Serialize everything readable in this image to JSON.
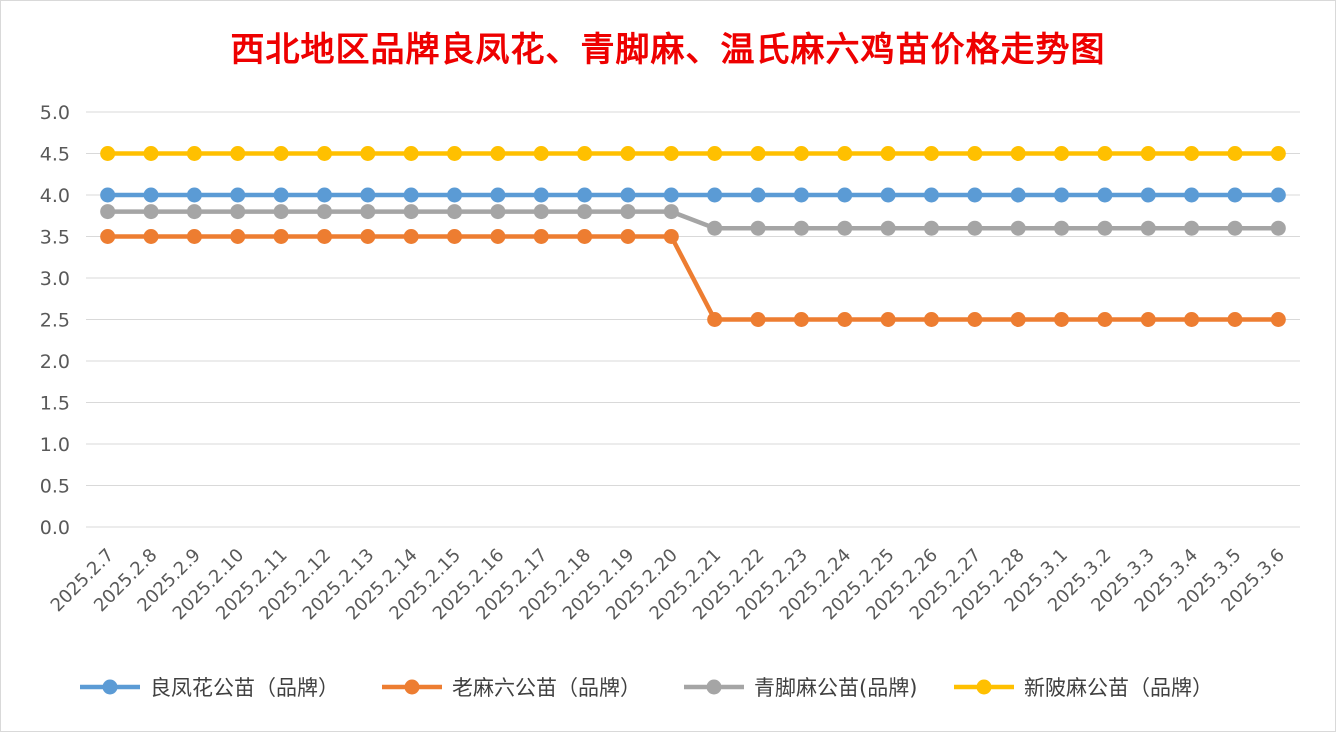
{
  "chart_data": {
    "type": "line",
    "title": "西北地区品牌良凤花、青脚麻、温氏麻六鸡苗价格走势图",
    "xlabel": "",
    "ylabel": "",
    "ylim": [
      0,
      5
    ],
    "yticks": [
      "0.0",
      "0.5",
      "1.0",
      "1.5",
      "2.0",
      "2.5",
      "3.0",
      "3.5",
      "4.0",
      "4.5",
      "5.0"
    ],
    "grid": true,
    "legend_position": "bottom",
    "categories": [
      "2025.2.7",
      "2025.2.8",
      "2025.2.9",
      "2025.2.10",
      "2025.2.11",
      "2025.2.12",
      "2025.2.13",
      "2025.2.14",
      "2025.2.15",
      "2025.2.16",
      "2025.2.17",
      "2025.2.18",
      "2025.2.19",
      "2025.2.20",
      "2025.2.21",
      "2025.2.22",
      "2025.2.23",
      "2025.2.24",
      "2025.2.25",
      "2025.2.26",
      "2025.2.27",
      "2025.2.28",
      "2025.3.1",
      "2025.3.2",
      "2025.3.3",
      "2025.3.4",
      "2025.3.5",
      "2025.3.6"
    ],
    "series": [
      {
        "name": "良凤花公苗（品牌）",
        "color": "#5b9bd5",
        "values": [
          4.0,
          4.0,
          4.0,
          4.0,
          4.0,
          4.0,
          4.0,
          4.0,
          4.0,
          4.0,
          4.0,
          4.0,
          4.0,
          4.0,
          4.0,
          4.0,
          4.0,
          4.0,
          4.0,
          4.0,
          4.0,
          4.0,
          4.0,
          4.0,
          4.0,
          4.0,
          4.0,
          4.0
        ]
      },
      {
        "name": "老麻六公苗（品牌）",
        "color": "#ed7d31",
        "values": [
          3.5,
          3.5,
          3.5,
          3.5,
          3.5,
          3.5,
          3.5,
          3.5,
          3.5,
          3.5,
          3.5,
          3.5,
          3.5,
          3.5,
          2.5,
          2.5,
          2.5,
          2.5,
          2.5,
          2.5,
          2.5,
          2.5,
          2.5,
          2.5,
          2.5,
          2.5,
          2.5,
          2.5
        ]
      },
      {
        "name": "青脚麻公苗(品牌)",
        "color": "#a5a5a5",
        "values": [
          3.8,
          3.8,
          3.8,
          3.8,
          3.8,
          3.8,
          3.8,
          3.8,
          3.8,
          3.8,
          3.8,
          3.8,
          3.8,
          3.8,
          3.6,
          3.6,
          3.6,
          3.6,
          3.6,
          3.6,
          3.6,
          3.6,
          3.6,
          3.6,
          3.6,
          3.6,
          3.6,
          3.6
        ]
      },
      {
        "name": "新陂麻公苗（品牌）",
        "color": "#ffc000",
        "values": [
          4.5,
          4.5,
          4.5,
          4.5,
          4.5,
          4.5,
          4.5,
          4.5,
          4.5,
          4.5,
          4.5,
          4.5,
          4.5,
          4.5,
          4.5,
          4.5,
          4.5,
          4.5,
          4.5,
          4.5,
          4.5,
          4.5,
          4.5,
          4.5,
          4.5,
          4.5,
          4.5,
          4.5
        ]
      }
    ]
  }
}
